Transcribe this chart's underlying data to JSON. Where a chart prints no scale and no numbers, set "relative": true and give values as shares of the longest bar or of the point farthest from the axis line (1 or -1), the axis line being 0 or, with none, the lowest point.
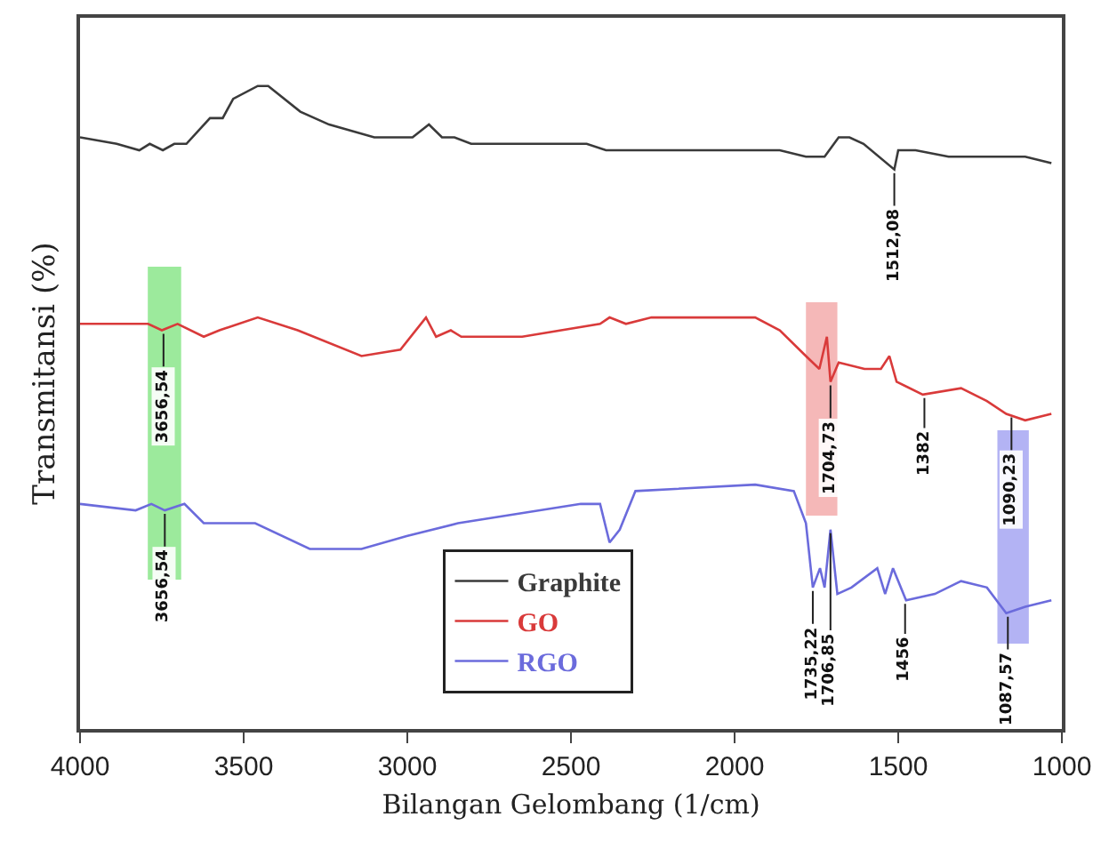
{
  "chart_data": {
    "type": "line",
    "relative": true,
    "xlabel": "Bilangan Gelombang (1/cm)",
    "ylabel": "Transmitansi (%)",
    "xlim": [
      4000,
      1000
    ],
    "xticks": [
      4000,
      3500,
      3000,
      2500,
      2000,
      1500,
      1000
    ],
    "legend": "bottom",
    "grid": false,
    "series": [
      {
        "name": "Graphite",
        "color": "#3a3a3a",
        "x": [
          4000,
          3888,
          3819,
          3787,
          3747,
          3712,
          3675,
          3603,
          3564,
          3532,
          3457,
          3425,
          3327,
          3239,
          3101,
          2984,
          2934,
          2894,
          2856,
          2805,
          2569,
          2452,
          2393,
          2332,
          2293,
          1979,
          1862,
          1782,
          1725,
          1682,
          1649,
          1606,
          1512,
          1500,
          1447,
          1346,
          1191,
          1112,
          1032
        ],
        "values": [
          0.92,
          0.91,
          0.9,
          0.91,
          0.9,
          0.91,
          0.91,
          0.95,
          0.95,
          0.98,
          1.0,
          1.0,
          0.96,
          0.94,
          0.92,
          0.92,
          0.94,
          0.92,
          0.92,
          0.91,
          0.91,
          0.91,
          0.9,
          0.9,
          0.9,
          0.9,
          0.9,
          0.89,
          0.89,
          0.92,
          0.92,
          0.91,
          0.87,
          0.9,
          0.9,
          0.89,
          0.89,
          0.89,
          0.88
        ]
      },
      {
        "name": "GO",
        "color": "#d93a3a",
        "x": [
          4000,
          3870,
          3792,
          3750,
          3702,
          3622,
          3574,
          3457,
          3335,
          3140,
          3021,
          2943,
          2912,
          2867,
          2835,
          2649,
          2411,
          2382,
          2332,
          2254,
          1937,
          1862,
          1782,
          1741,
          1718,
          1707,
          1682,
          1603,
          1553,
          1527,
          1505,
          1425,
          1308,
          1229,
          1170,
          1112,
          1032
        ],
        "values": [
          0.63,
          0.63,
          0.63,
          0.62,
          0.63,
          0.61,
          0.62,
          0.64,
          0.62,
          0.58,
          0.59,
          0.64,
          0.61,
          0.62,
          0.61,
          0.61,
          0.63,
          0.64,
          0.63,
          0.64,
          0.64,
          0.62,
          0.58,
          0.56,
          0.61,
          0.54,
          0.57,
          0.56,
          0.56,
          0.58,
          0.54,
          0.52,
          0.53,
          0.51,
          0.49,
          0.48,
          0.49
        ]
      },
      {
        "name": "RGO",
        "color": "#6b6bdc",
        "x": [
          4000,
          3830,
          3782,
          3741,
          3681,
          3622,
          3465,
          3298,
          3140,
          3002,
          2845,
          2470,
          2411,
          2382,
          2351,
          2303,
          1937,
          1819,
          1782,
          1761,
          1739,
          1725,
          1707,
          1686,
          1643,
          1564,
          1540,
          1516,
          1476,
          1388,
          1308,
          1229,
          1170,
          1112,
          1032
        ],
        "values": [
          0.35,
          0.34,
          0.35,
          0.34,
          0.35,
          0.32,
          0.32,
          0.28,
          0.28,
          0.3,
          0.32,
          0.35,
          0.35,
          0.29,
          0.31,
          0.37,
          0.38,
          0.37,
          0.32,
          0.22,
          0.25,
          0.22,
          0.31,
          0.21,
          0.22,
          0.25,
          0.21,
          0.25,
          0.2,
          0.21,
          0.23,
          0.22,
          0.18,
          0.19,
          0.2
        ]
      }
    ],
    "bands": [
      {
        "axis": "x",
        "from": 3793,
        "to": 3691,
        "color": "#7be37b"
      },
      {
        "axis": "x",
        "from": 1782,
        "to": 1686,
        "color": "#f2a0a0"
      },
      {
        "axis": "x",
        "from": 1197,
        "to": 1101,
        "color": "#9a9af0"
      }
    ],
    "annotations": [
      {
        "text": "1512,08",
        "x": 1512,
        "y": 0.87
      },
      {
        "text": "3656,54",
        "x": 3745,
        "y": 0.62
      },
      {
        "text": "3656,54",
        "x": 3741,
        "y": 0.34
      },
      {
        "text": "1704,73",
        "x": 1707,
        "y": 0.54
      },
      {
        "text": "1382",
        "x": 1420,
        "y": 0.52
      },
      {
        "text": "1090,23",
        "x": 1154,
        "y": 0.49
      },
      {
        "text": "1735,22",
        "x": 1761,
        "y": 0.22
      },
      {
        "text": "1706,85",
        "x": 1707,
        "y": 0.31
      },
      {
        "text": "1456",
        "x": 1479,
        "y": 0.2
      },
      {
        "text": "1087,57",
        "x": 1165,
        "y": 0.18
      }
    ]
  }
}
